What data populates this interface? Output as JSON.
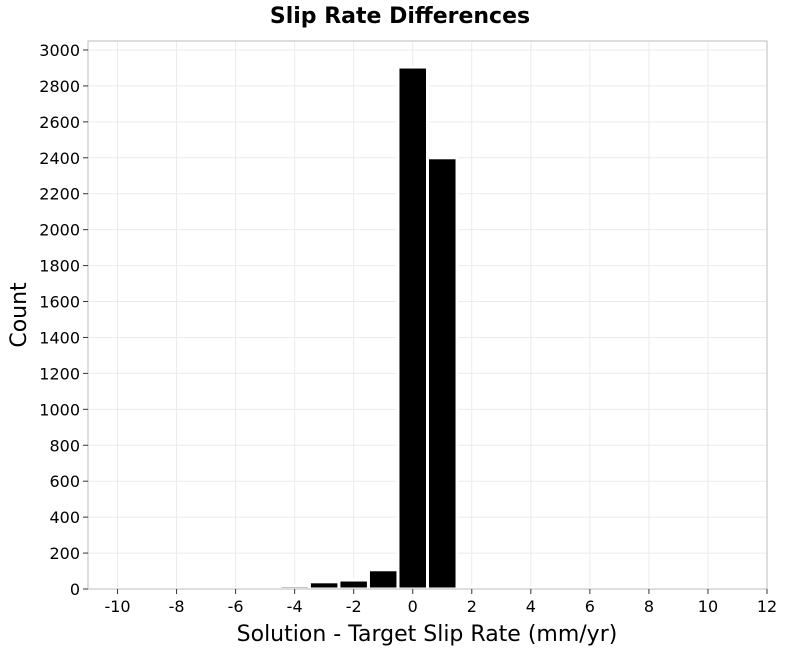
{
  "chart_data": {
    "type": "bar",
    "title": "Slip Rate Differences",
    "xlabel": "Solution - Target Slip Rate (mm/yr)",
    "ylabel": "Count",
    "bin_width": 1,
    "x": [
      -10,
      -9,
      -8,
      -7,
      -6,
      -5,
      -4,
      -3,
      -2,
      -1,
      0,
      1,
      2,
      3,
      4,
      5,
      6,
      7,
      8,
      9,
      10
    ],
    "values": [
      1,
      2,
      1,
      1,
      2,
      3,
      18,
      40,
      50,
      107,
      2905,
      2400,
      15,
      5,
      8,
      1,
      1,
      0,
      1,
      1,
      1
    ],
    "xlim": [
      -11,
      12
    ],
    "ylim": [
      0,
      3050
    ],
    "xticks": [
      -10,
      -8,
      -6,
      -4,
      -2,
      0,
      2,
      4,
      6,
      8,
      10,
      12
    ],
    "xtick_labels": [
      "-10",
      "-8",
      "-6",
      "-4",
      "-2",
      "0",
      "2",
      "4",
      "6",
      "8",
      "10",
      "12"
    ],
    "yticks": [
      0,
      200,
      400,
      600,
      800,
      1000,
      1200,
      1400,
      1600,
      1800,
      2000,
      2200,
      2400,
      2600,
      2800,
      3000
    ],
    "ytick_labels": [
      "0",
      "200",
      "400",
      "600",
      "800",
      "1000",
      "1200",
      "1400",
      "1600",
      "1800",
      "2000",
      "2200",
      "2400",
      "2600",
      "2800",
      "3000"
    ],
    "grid": true,
    "bar_color": "#000000",
    "grid_color": "#ebebeb",
    "frame_color": "#bdbdbd"
  }
}
